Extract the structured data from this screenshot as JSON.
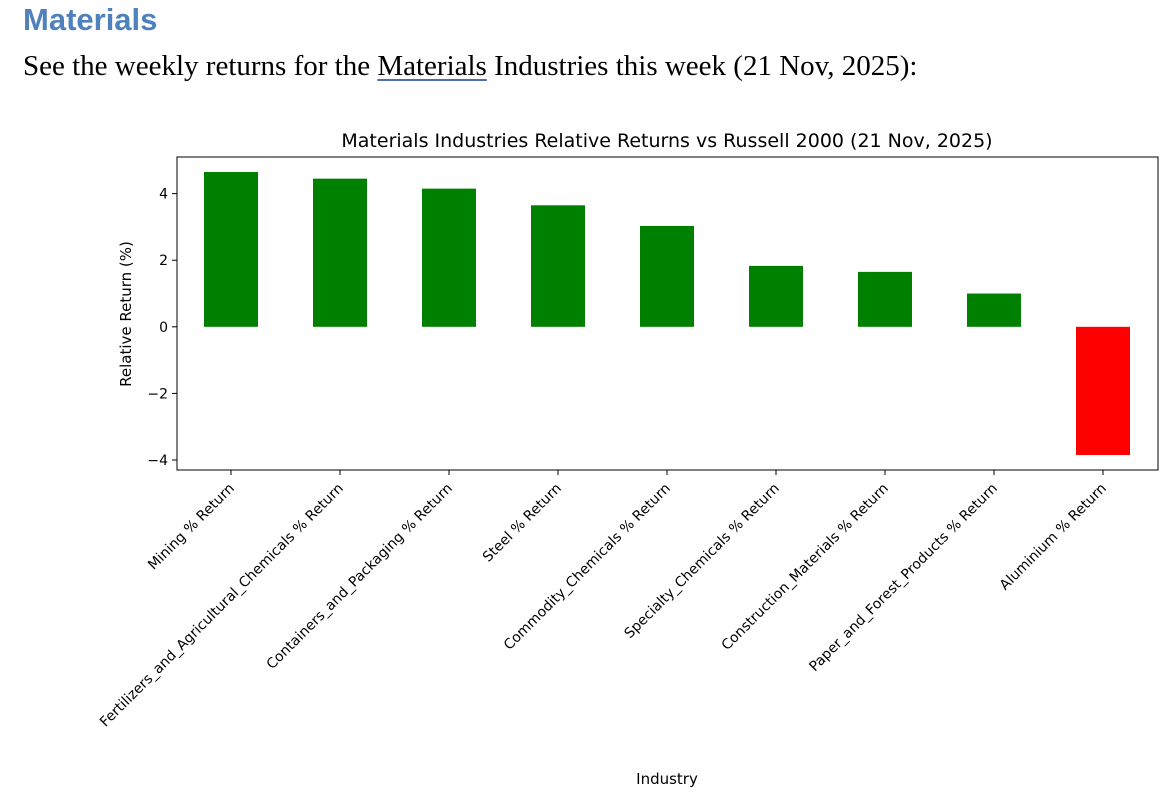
{
  "document": {
    "heading": "Materials",
    "intro_prefix": "See the weekly returns for the ",
    "intro_link": "Materials",
    "intro_suffix": " Industries this week (21 Nov, 2025):"
  },
  "colors": {
    "heading": "#4f81bd",
    "positive": "#008000",
    "negative": "#ff0000"
  },
  "chart_data": {
    "type": "bar",
    "title": "Materials Industries Relative Returns vs Russell 2000 (21 Nov, 2025)",
    "xlabel": "Industry",
    "ylabel": "Relative Return (%)",
    "ylim": [
      -4.3,
      5.1
    ],
    "yticks": [
      {
        "value": 4,
        "label": "4"
      },
      {
        "value": 2,
        "label": "2"
      },
      {
        "value": 0,
        "label": "0"
      },
      {
        "value": -2,
        "label": "−2"
      },
      {
        "value": -4,
        "label": "−4"
      }
    ],
    "categories": [
      "Mining % Return",
      "Fertilizers_and_Agricultural_Chemicals % Return",
      "Containers_and_Packaging % Return",
      "Steel % Return",
      "Commodity_Chemicals % Return",
      "Specialty_Chemicals % Return",
      "Construction_Materials % Return",
      "Paper_and_Forest_Products % Return",
      "Aluminium % Return"
    ],
    "values": [
      4.65,
      4.45,
      4.15,
      3.65,
      3.03,
      1.83,
      1.65,
      1.0,
      -3.85
    ]
  }
}
